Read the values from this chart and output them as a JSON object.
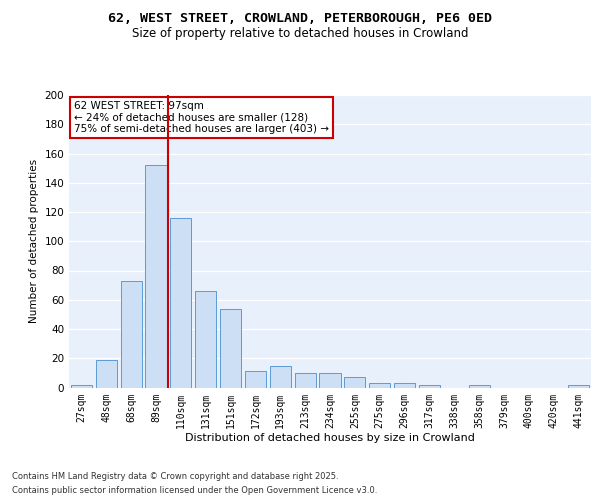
{
  "title_line1": "62, WEST STREET, CROWLAND, PETERBOROUGH, PE6 0ED",
  "title_line2": "Size of property relative to detached houses in Crowland",
  "xlabel": "Distribution of detached houses by size in Crowland",
  "ylabel": "Number of detached properties",
  "categories": [
    "27sqm",
    "48sqm",
    "68sqm",
    "89sqm",
    "110sqm",
    "131sqm",
    "151sqm",
    "172sqm",
    "193sqm",
    "213sqm",
    "234sqm",
    "255sqm",
    "275sqm",
    "296sqm",
    "317sqm",
    "338sqm",
    "358sqm",
    "379sqm",
    "400sqm",
    "420sqm",
    "441sqm"
  ],
  "values": [
    2,
    19,
    73,
    152,
    116,
    66,
    54,
    11,
    15,
    10,
    10,
    7,
    3,
    3,
    2,
    0,
    2,
    0,
    0,
    0,
    2
  ],
  "bar_color": "#ccdff5",
  "bar_edge_color": "#5b9bd5",
  "vline_x": 3.5,
  "vline_color": "#cc0000",
  "annotation_text": "62 WEST STREET: 97sqm\n← 24% of detached houses are smaller (128)\n75% of semi-detached houses are larger (403) →",
  "annotation_box_color": "#ffffff",
  "annotation_box_edge": "#cc0000",
  "ylim": [
    0,
    200
  ],
  "yticks": [
    0,
    20,
    40,
    60,
    80,
    100,
    120,
    140,
    160,
    180,
    200
  ],
  "footer_line1": "Contains HM Land Registry data © Crown copyright and database right 2025.",
  "footer_line2": "Contains public sector information licensed under the Open Government Licence v3.0.",
  "bg_color": "#e8f0fb",
  "fig_bg_color": "#ffffff",
  "grid_color": "#ffffff"
}
